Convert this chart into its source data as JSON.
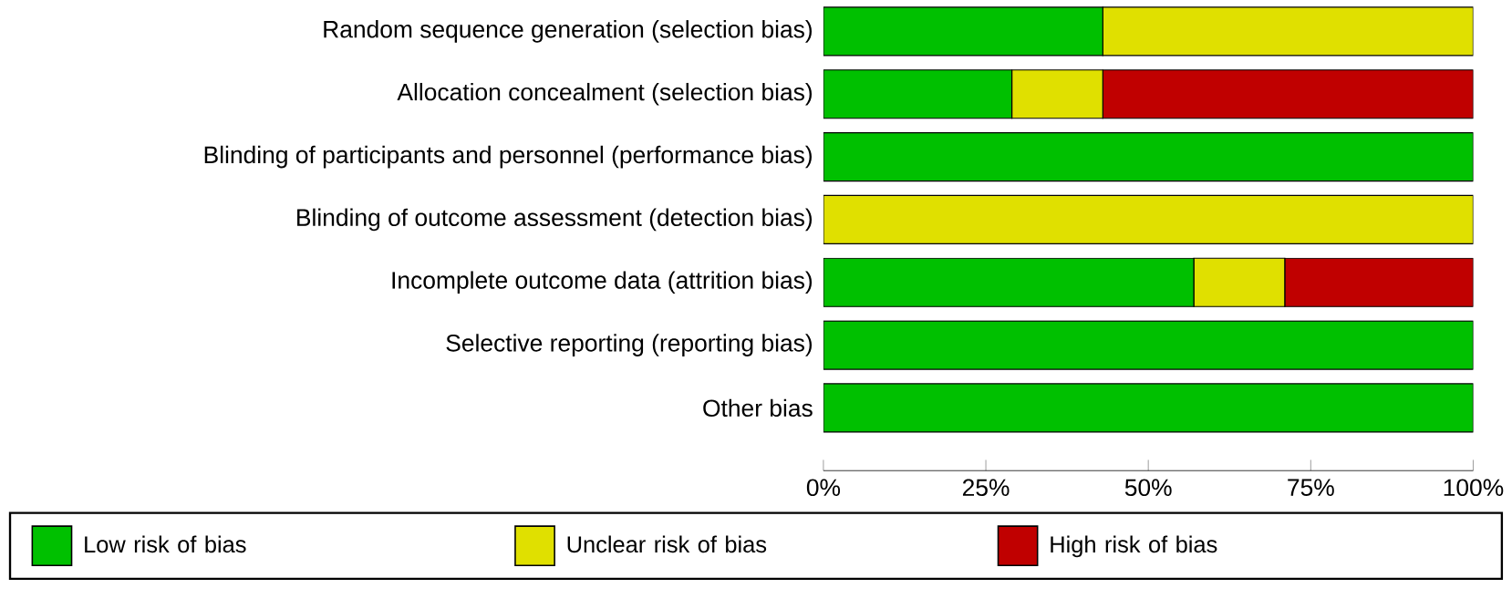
{
  "chart_data": {
    "type": "bar",
    "orientation": "horizontal",
    "stacked": true,
    "categories": [
      "Random sequence generation (selection bias)",
      "Allocation concealment (selection bias)",
      "Blinding of participants and personnel (performance bias)",
      "Blinding of outcome assessment (detection bias)",
      "Incomplete outcome data (attrition bias)",
      "Selective reporting (reporting bias)",
      "Other bias"
    ],
    "series": [
      {
        "name": "Low risk of bias",
        "color": "#00c000",
        "values": [
          43,
          29,
          100,
          0,
          57,
          100,
          100
        ]
      },
      {
        "name": "Unclear risk of bias",
        "color": "#e0e000",
        "values": [
          57,
          14,
          0,
          100,
          14,
          0,
          0
        ]
      },
      {
        "name": "High risk of bias",
        "color": "#c00000",
        "values": [
          0,
          57,
          0,
          0,
          29,
          0,
          0
        ]
      }
    ],
    "xlim": [
      0,
      100
    ],
    "xticks": [
      {
        "value": 0,
        "label": "0%"
      },
      {
        "value": 25,
        "label": "25%"
      },
      {
        "value": 50,
        "label": "50%"
      },
      {
        "value": 75,
        "label": "75%"
      },
      {
        "value": 100,
        "label": "100%"
      }
    ],
    "grid": false,
    "legend": "bottom"
  }
}
